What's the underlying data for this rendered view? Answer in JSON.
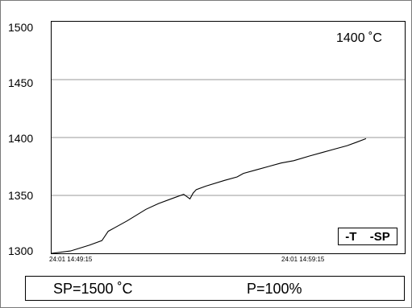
{
  "chart_data": {
    "type": "line",
    "ylim": [
      1300,
      1500
    ],
    "yticks": [
      "1500",
      "1450",
      "1400",
      "1350",
      "1300"
    ],
    "xticks": [
      "24:01 14:49:15",
      "24:01 14:59:15"
    ],
    "grid": true,
    "legend": {
      "placement": "bottom-right",
      "items": [
        "-T",
        "-SP"
      ]
    },
    "series": [
      {
        "name": "T",
        "x": [
          0,
          0.06,
          0.12,
          0.16,
          0.18,
          0.2,
          0.24,
          0.3,
          0.34,
          0.38,
          0.42,
          0.44,
          0.45,
          0.46,
          0.49,
          0.55,
          0.59,
          0.61,
          0.65,
          0.69,
          0.73,
          0.77,
          0.82,
          0.86,
          0.9,
          0.94,
          0.97,
          1.0
        ],
        "values": [
          1300,
          1302,
          1307,
          1311,
          1319,
          1322,
          1328,
          1338,
          1343,
          1347,
          1351,
          1347,
          1352,
          1355,
          1358,
          1363,
          1366,
          1369,
          1372,
          1375,
          1378,
          1380,
          1384,
          1387,
          1390,
          1393,
          1396,
          1399
        ]
      }
    ]
  },
  "display": {
    "current_value": "1400 ˚C",
    "setpoint": "SP=1500 ˚C",
    "power": "P=100%"
  },
  "colors": {
    "line": "#000000",
    "grid": "#9a9a9a",
    "frame": "#000000"
  }
}
